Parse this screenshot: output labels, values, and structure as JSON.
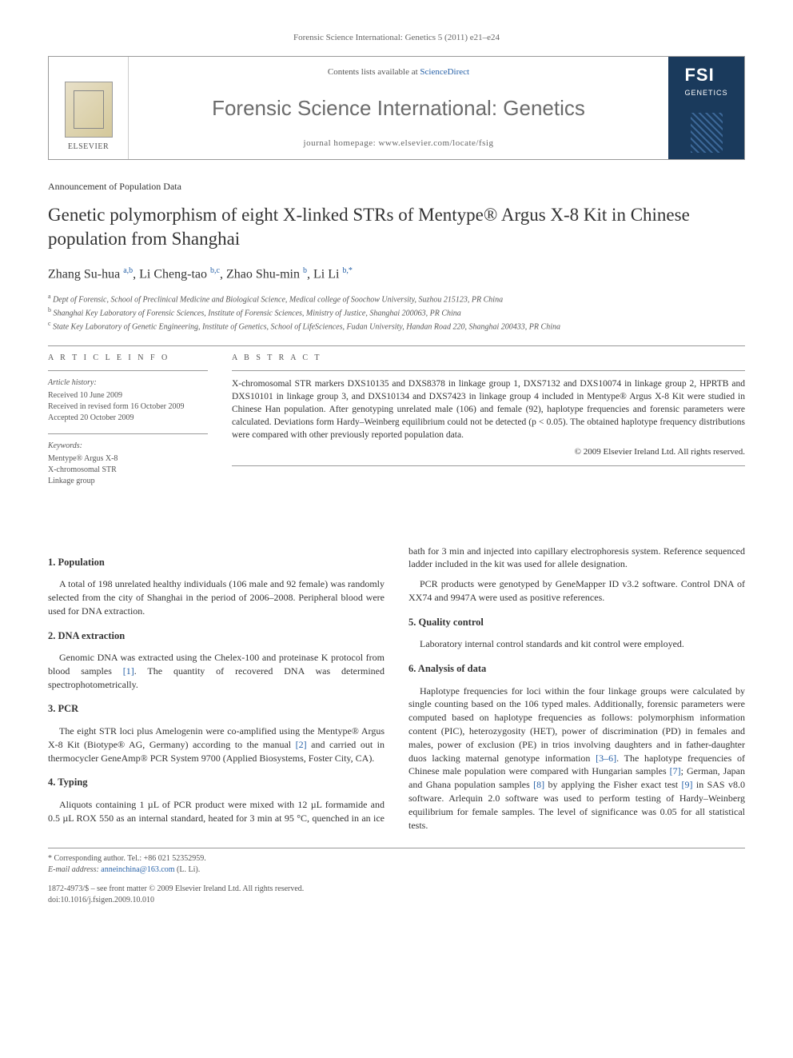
{
  "running_header": "Forensic Science International: Genetics 5 (2011) e21–e24",
  "journal_box": {
    "contents_prefix": "Contents lists available at ",
    "contents_link": "ScienceDirect",
    "journal_name": "Forensic Science International: Genetics",
    "homepage_label": "journal homepage: ",
    "homepage_url": "www.elsevier.com/locate/fsig",
    "publisher": "ELSEVIER",
    "cover_abbrev": "FSI",
    "cover_sub": "GENETICS"
  },
  "article_type": "Announcement of Population Data",
  "title": "Genetic polymorphism of eight X-linked STRs of Mentype® Argus X-8 Kit in Chinese population from Shanghai",
  "authors_html": "Zhang Su-hua <sup>a,b</sup>, Li Cheng-tao <sup>b,c</sup>, Zhao Shu-min <sup>b</sup>, Li Li <sup>b,*</sup>",
  "affiliations": [
    "a Dept of Forensic, School of Preclinical Medicine and Biological Science, Medical college of Soochow University, Suzhou 215123, PR China",
    "b Shanghai Key Laboratory of Forensic Sciences, Institute of Forensic Sciences, Ministry of Justice, Shanghai 200063, PR China",
    "c State Key Laboratory of Genetic Engineering, Institute of Genetics, School of LifeSciences, Fudan University, Handan Road 220, Shanghai 200433, PR China"
  ],
  "article_info": {
    "heading": "A R T I C L E  I N F O",
    "history_label": "Article history:",
    "history": [
      "Received 10 June 2009",
      "Received in revised form 16 October 2009",
      "Accepted 20 October 2009"
    ],
    "keywords_label": "Keywords:",
    "keywords": [
      "Mentype® Argus X-8",
      "X-chromosomal STR",
      "Linkage group"
    ]
  },
  "abstract": {
    "heading": "A B S T R A C T",
    "text": "X-chromosomal STR markers DXS10135 and DXS8378 in linkage group 1, DXS7132 and DXS10074 in linkage group 2, HPRTB and DXS10101 in linkage group 3, and DXS10134 and DXS7423 in linkage group 4 included in Mentype® Argus X-8 Kit were studied in Chinese Han population. After genotyping unrelated male (106) and female (92), haplotype frequencies and forensic parameters were calculated. Deviations form Hardy–Weinberg equilibrium could not be detected (p < 0.05). The obtained haplotype frequency distributions were compared with other previously reported population data.",
    "copyright": "© 2009 Elsevier Ireland Ltd. All rights reserved."
  },
  "sections": [
    {
      "head": "1. Population",
      "paras": [
        "A total of 198 unrelated healthy individuals (106 male and 92 female) was randomly selected from the city of Shanghai in the period of 2006–2008. Peripheral blood were used for DNA extraction."
      ]
    },
    {
      "head": "2. DNA extraction",
      "paras": [
        "Genomic DNA was extracted using the Chelex-100 and proteinase K protocol from blood samples [1]. The quantity of recovered DNA was determined spectrophotometrically."
      ]
    },
    {
      "head": "3. PCR",
      "paras": [
        "The eight STR loci plus Amelogenin were co-amplified using the Mentype® Argus X-8 Kit (Biotype® AG, Germany) according to the manual [2] and carried out in thermocycler GeneAmp® PCR System 9700 (Applied Biosystems, Foster City, CA)."
      ]
    },
    {
      "head": "4. Typing",
      "paras": [
        "Aliquots containing 1 µL of PCR product were mixed with 12 µL formamide and 0.5 µL ROX 550 as an internal standard, heated for 3 min at 95 °C, quenched in an ice bath for 3 min and injected into capillary electrophoresis system. Reference sequenced ladder included in the kit was used for allele designation.",
        "PCR products were genotyped by GeneMapper ID v3.2 software. Control DNA of XX74 and 9947A were used as positive references."
      ]
    },
    {
      "head": "5. Quality control",
      "paras": [
        "Laboratory internal control standards and kit control were employed."
      ]
    },
    {
      "head": "6. Analysis of data",
      "paras": [
        "Haplotype frequencies for loci within the four linkage groups were calculated by single counting based on the 106 typed males. Additionally, forensic parameters were computed based on haplotype frequencies as follows: polymorphism information content (PIC), heterozygosity (HET), power of discrimination (PD) in females and males, power of exclusion (PE) in trios involving daughters and in father-daughter duos lacking maternal genotype information [3–6]. The haplotype frequencies of Chinese male population were compared with Hungarian samples [7]; German, Japan and Ghana population samples [8] by applying the Fisher exact test [9] in SAS v8.0 software. Arlequin 2.0 software was used to perform testing of Hardy–Weinberg equilibrium for female samples. The level of significance was 0.05 for all statistical tests."
      ]
    }
  ],
  "corresponding": {
    "label": "* Corresponding author. Tel.: +86 021 52352959.",
    "email_label": "E-mail address: ",
    "email": "anneinchina@163.com",
    "email_name": "(L. Li)."
  },
  "footer": {
    "issn": "1872-4973/$ – see front matter © 2009 Elsevier Ireland Ltd. All rights reserved.",
    "doi": "doi:10.1016/j.fsigen.2009.10.010"
  },
  "colors": {
    "link": "#2862a8",
    "text": "#333333",
    "muted": "#666666",
    "cover_bg": "#1a3a5c"
  }
}
